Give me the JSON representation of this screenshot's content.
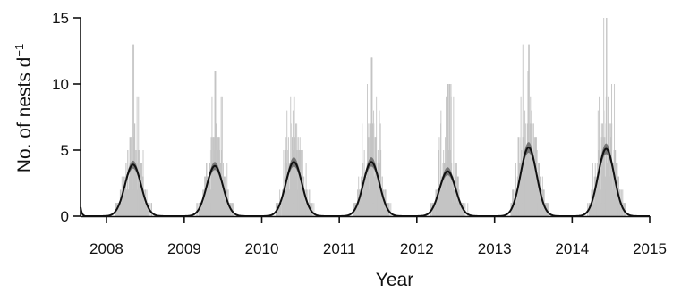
{
  "chart_data": {
    "type": "bar",
    "title": "",
    "xlabel": "Year",
    "ylabel": "No. of nests d",
    "ylabel_superscript": "−1",
    "x_ticks": [
      "2008",
      "2009",
      "2010",
      "2011",
      "2012",
      "2013",
      "2014",
      "2015"
    ],
    "y_ticks": [
      "0",
      "5",
      "10",
      "15"
    ],
    "xlim": [
      "2007-09-01",
      "2015-01-01"
    ],
    "ylim": [
      0,
      15
    ],
    "grid": false,
    "legend": "none",
    "colors": {
      "bars": "#c4c4c4",
      "fit": "#111111",
      "ci": "#666666",
      "axis": "#111111"
    },
    "series": [
      {
        "type": "bar",
        "values_desc": "daily nest counts (grey bars), seasonal clusters"
      },
      {
        "type": "line",
        "values_desc": "fitted seasonal curve with confidence band"
      }
    ],
    "seasons": [
      {
        "year": 2008,
        "peak_date": "2008-05-05",
        "peak_fit": 3.9,
        "ci_halfwidth": 0.3,
        "bar_max": 13
      },
      {
        "year": 2009,
        "peak_date": "2009-05-25",
        "peak_fit": 3.8,
        "ci_halfwidth": 0.3,
        "bar_max": 11
      },
      {
        "year": 2010,
        "peak_date": "2010-06-01",
        "peak_fit": 4.1,
        "ci_halfwidth": 0.35,
        "bar_max": 9
      },
      {
        "year": 2011,
        "peak_date": "2011-06-01",
        "peak_fit": 4.1,
        "ci_halfwidth": 0.35,
        "bar_max": 12
      },
      {
        "year": 2012,
        "peak_date": "2012-05-25",
        "peak_fit": 3.4,
        "ci_halfwidth": 0.3,
        "bar_max": 10
      },
      {
        "year": 2013,
        "peak_date": "2013-06-10",
        "peak_fit": 5.2,
        "ci_halfwidth": 0.4,
        "bar_max": 13
      },
      {
        "year": 2014,
        "peak_date": "2014-06-10",
        "peak_fit": 5.1,
        "ci_halfwidth": 0.4,
        "bar_max": 15
      }
    ]
  }
}
